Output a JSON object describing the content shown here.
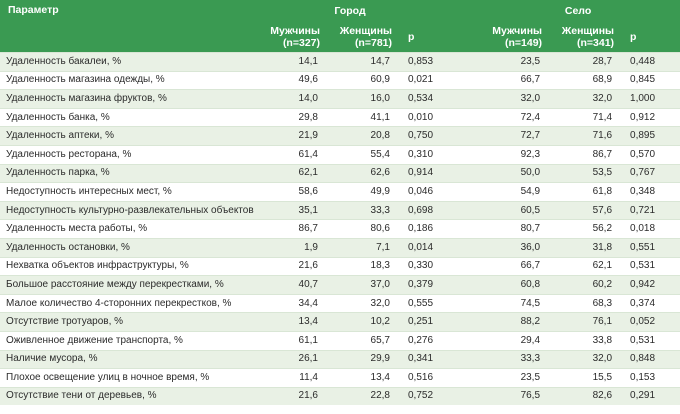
{
  "header": {
    "param": "Параметр",
    "city": "Город",
    "village": "Село",
    "men": "Мужчины",
    "women": "Женщины",
    "p": "р",
    "city_men_n": "(n=327)",
    "city_women_n": "(n=781)",
    "village_men_n": "(n=149)",
    "village_women_n": "(n=341)"
  },
  "rows": [
    {
      "label": "Удаленность бакалеи, %",
      "cm": "14,1",
      "cf": "14,7",
      "cp": "0,853",
      "vm": "23,5",
      "vf": "28,7",
      "vp": "0,448"
    },
    {
      "label": "Удаленность магазина одежды, %",
      "cm": "49,6",
      "cf": "60,9",
      "cp": "0,021",
      "vm": "66,7",
      "vf": "68,9",
      "vp": "0,845"
    },
    {
      "label": "Удаленность магазина фруктов, %",
      "cm": "14,0",
      "cf": "16,0",
      "cp": "0,534",
      "vm": "32,0",
      "vf": "32,0",
      "vp": "1,000"
    },
    {
      "label": "Удаленность банка, %",
      "cm": "29,8",
      "cf": "41,1",
      "cp": "0,010",
      "vm": "72,4",
      "vf": "71,4",
      "vp": "0,912"
    },
    {
      "label": "Удаленность аптеки, %",
      "cm": "21,9",
      "cf": "20,8",
      "cp": "0,750",
      "vm": "72,7",
      "vf": "71,6",
      "vp": "0,895"
    },
    {
      "label": "Удаленность ресторана, %",
      "cm": "61,4",
      "cf": "55,4",
      "cp": "0,310",
      "vm": "92,3",
      "vf": "86,7",
      "vp": "0,570"
    },
    {
      "label": "Удаленность парка, %",
      "cm": "62,1",
      "cf": "62,6",
      "cp": "0,914",
      "vm": "50,0",
      "vf": "53,5",
      "vp": "0,767"
    },
    {
      "label": "Недоступность интересных мест, %",
      "cm": "58,6",
      "cf": "49,9",
      "cp": "0,046",
      "vm": "54,9",
      "vf": "61,8",
      "vp": "0,348"
    },
    {
      "label": "Недоступность культурно-развлекательных объектов, %",
      "cm": "35,1",
      "cf": "33,3",
      "cp": "0,698",
      "vm": "60,5",
      "vf": "57,6",
      "vp": "0,721"
    },
    {
      "label": "Удаленность места работы, %",
      "cm": "86,7",
      "cf": "80,6",
      "cp": "0,186",
      "vm": "80,7",
      "vf": "56,2",
      "vp": "0,018"
    },
    {
      "label": "Удаленность остановки, %",
      "cm": "1,9",
      "cf": "7,1",
      "cp": "0,014",
      "vm": "36,0",
      "vf": "31,8",
      "vp": "0,551"
    },
    {
      "label": "Нехватка объектов инфраструктуры, %",
      "cm": "21,6",
      "cf": "18,3",
      "cp": "0,330",
      "vm": "66,7",
      "vf": "62,1",
      "vp": "0,531"
    },
    {
      "label": "Большое расстояние между перекрестками, %",
      "cm": "40,7",
      "cf": "37,0",
      "cp": "0,379",
      "vm": "60,8",
      "vf": "60,2",
      "vp": "0,942"
    },
    {
      "label": "Малое количество 4-сторонних перекрестков, %",
      "cm": "34,4",
      "cf": "32,0",
      "cp": "0,555",
      "vm": "74,5",
      "vf": "68,3",
      "vp": "0,374"
    },
    {
      "label": "Отсутствие тротуаров, %",
      "cm": "13,4",
      "cf": "10,2",
      "cp": "0,251",
      "vm": "88,2",
      "vf": "76,1",
      "vp": "0,052"
    },
    {
      "label": "Оживленное движение транспорта, %",
      "cm": "61,1",
      "cf": "65,7",
      "cp": "0,276",
      "vm": "29,4",
      "vf": "33,8",
      "vp": "0,531"
    },
    {
      "label": "Наличие мусора, %",
      "cm": "26,1",
      "cf": "29,9",
      "cp": "0,341",
      "vm": "33,3",
      "vf": "32,0",
      "vp": "0,848"
    },
    {
      "label": "Плохое освещение улиц в ночное время, %",
      "cm": "11,4",
      "cf": "13,4",
      "cp": "0,516",
      "vm": "23,5",
      "vf": "15,5",
      "vp": "0,153"
    },
    {
      "label": "Отсутствие тени от деревьев, %",
      "cm": "21,6",
      "cf": "22,8",
      "cp": "0,752",
      "vm": "76,5",
      "vf": "82,6",
      "vp": "0,291"
    }
  ]
}
